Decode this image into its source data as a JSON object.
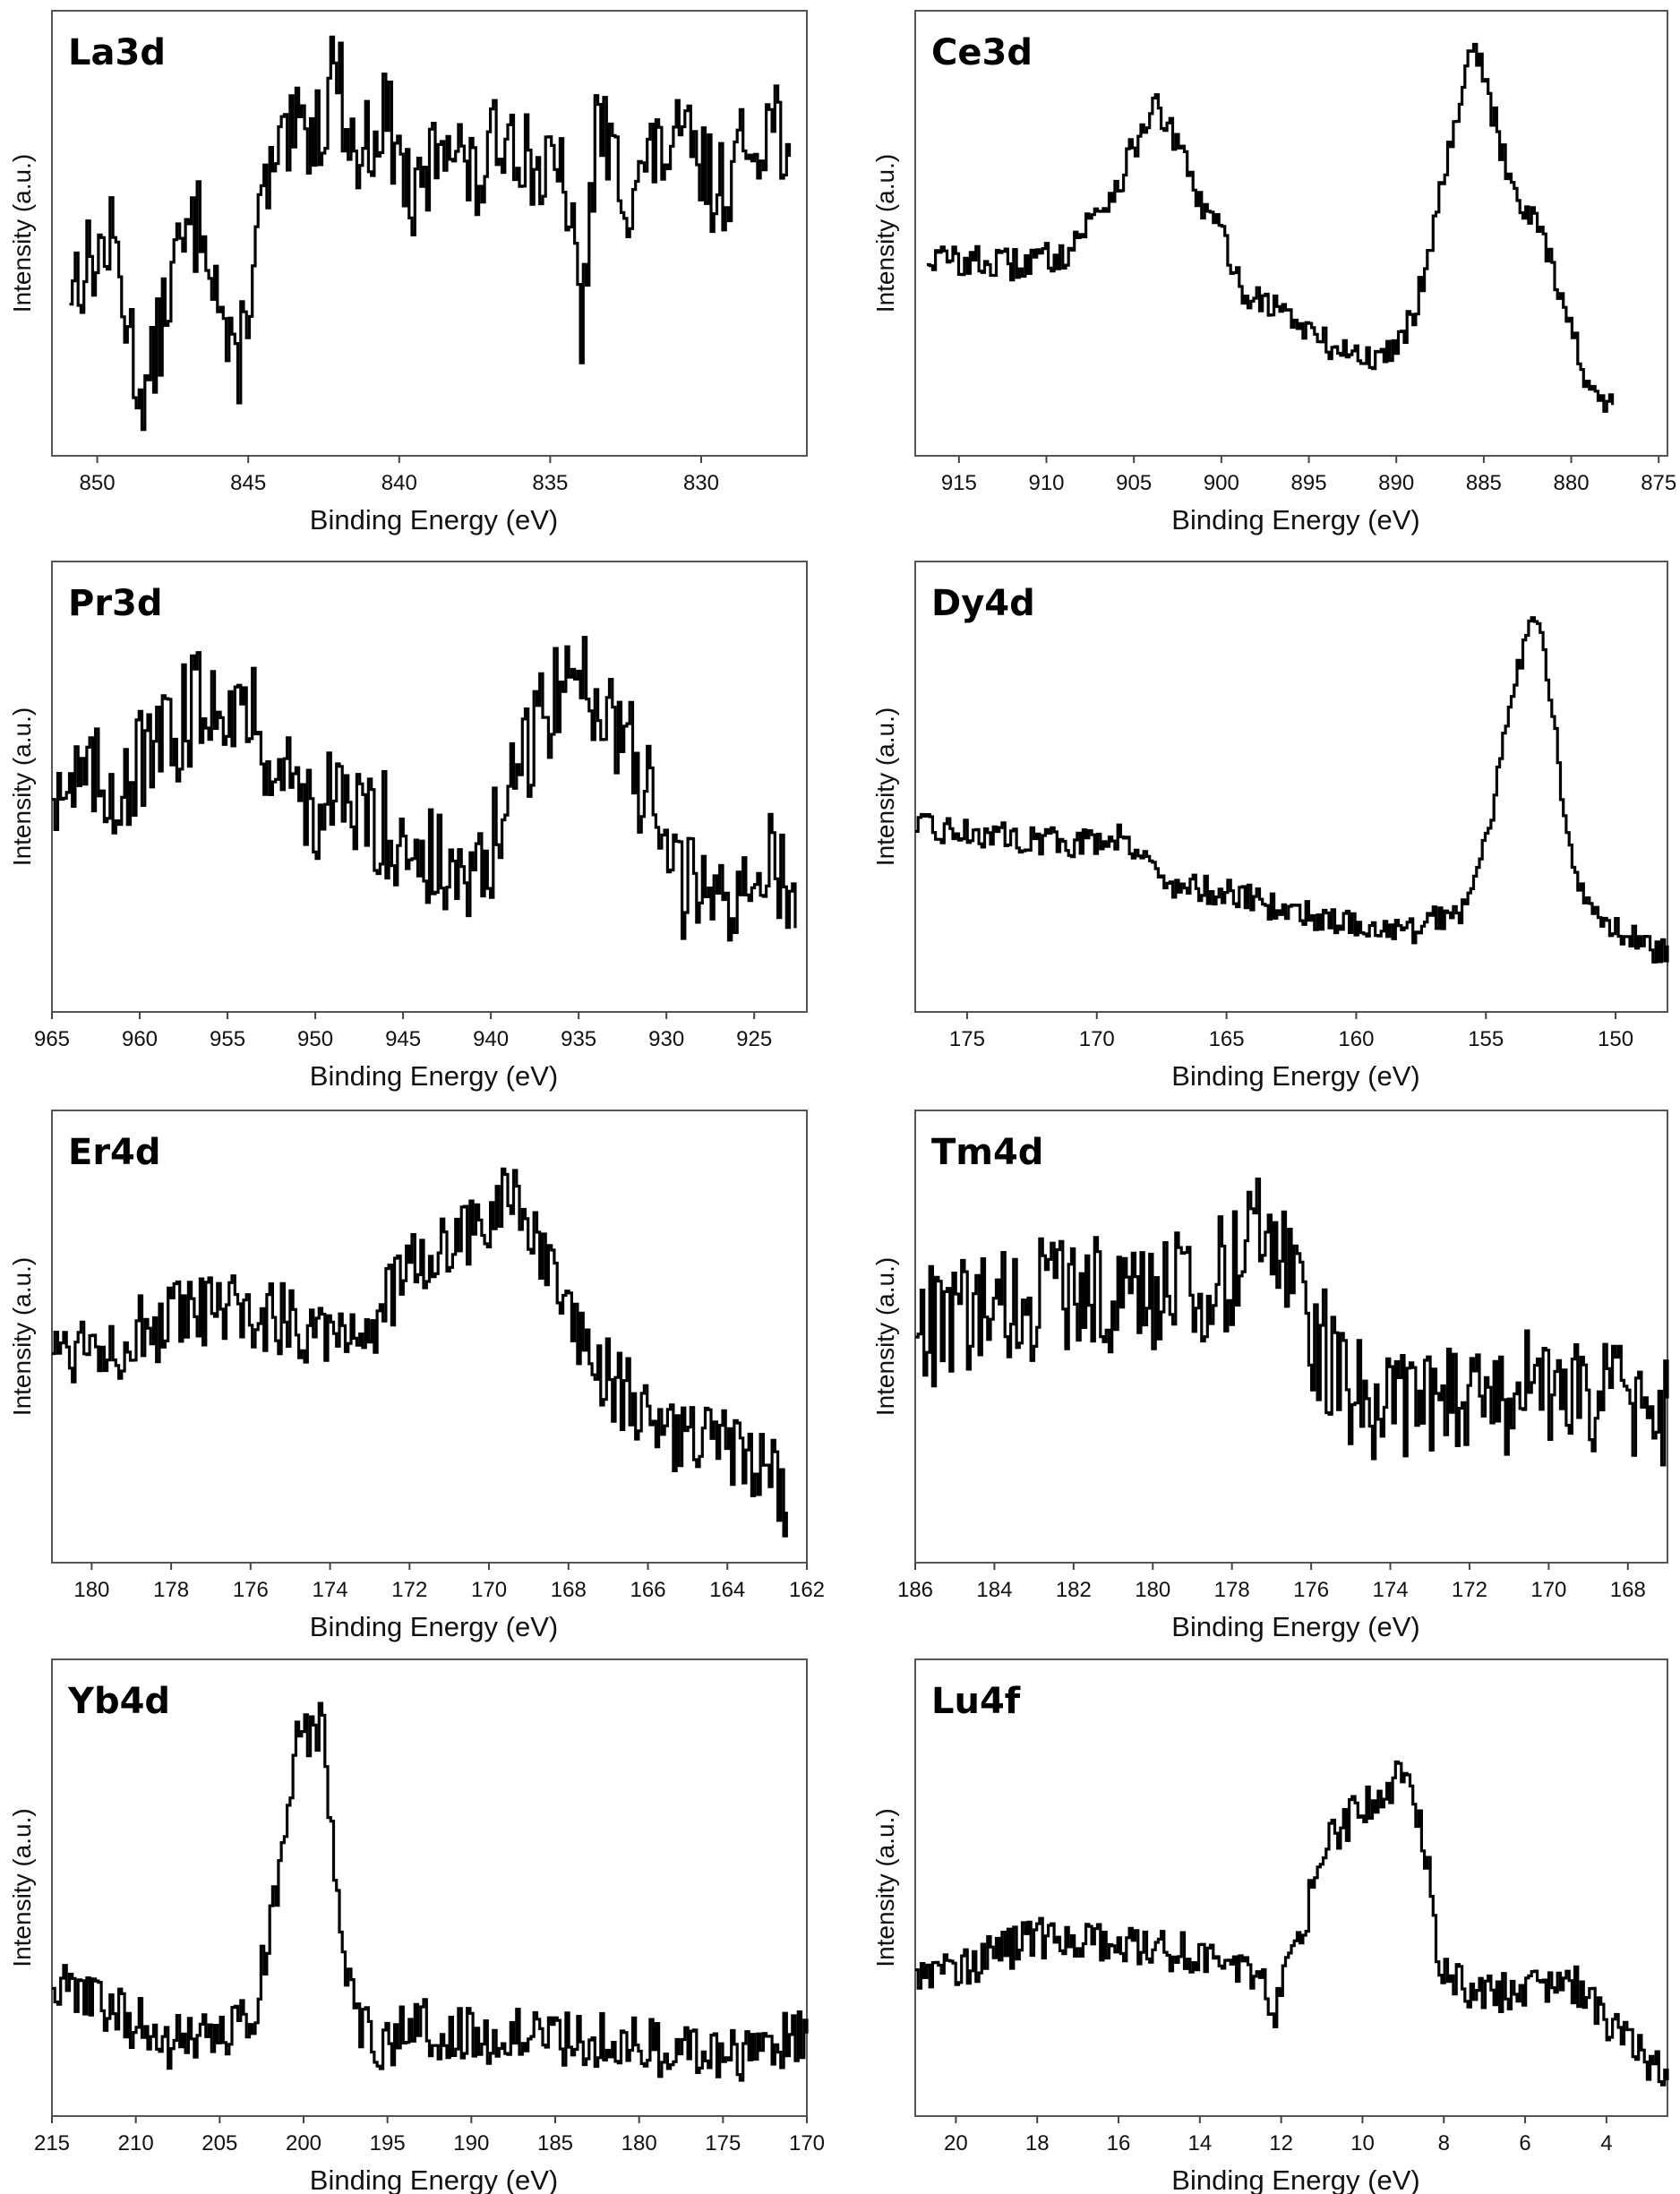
{
  "chart_data": [
    {
      "type": "line",
      "title": "La3d",
      "xlabel": "Binding Energy (eV)",
      "ylabel": "Intensity (a.u.)",
      "xlim": [
        851.5,
        826.5
      ],
      "ylim": [
        0,
        100
      ],
      "xticks": [
        850,
        845,
        840,
        835,
        830
      ],
      "x": [
        851.0,
        849.5,
        848.5,
        847.5,
        846.5,
        845.5,
        844.5,
        843.5,
        842.5,
        842.3,
        841.5,
        840.5,
        839.5,
        838.5,
        837.5,
        836.5,
        835.5,
        834.5,
        834.0,
        833.5,
        832.5,
        831.5,
        830.5,
        829.5,
        828.5,
        827.5,
        827.0
      ],
      "values": [
        38,
        48,
        5,
        42,
        55,
        12,
        60,
        74,
        78,
        98,
        68,
        80,
        55,
        78,
        61,
        78,
        66,
        62,
        25,
        78,
        60,
        70,
        72,
        60,
        72,
        80,
        62
      ],
      "noise": 12
    },
    {
      "type": "line",
      "title": "Ce3d",
      "xlabel": "Binding Energy (eV)",
      "ylabel": "Intensity (a.u.)",
      "xlim": [
        917.5,
        874.5
      ],
      "ylim": [
        0,
        100
      ],
      "xticks": [
        915,
        910,
        905,
        900,
        895,
        890,
        885,
        880,
        875
      ],
      "x": [
        917,
        912,
        909,
        906,
        904,
        903,
        901,
        900,
        899,
        897,
        894,
        891,
        889,
        887,
        886,
        885.5,
        884,
        883,
        882,
        881,
        879,
        877.5
      ],
      "values": [
        44,
        42,
        45,
        62,
        82,
        76,
        55,
        50,
        36,
        32,
        22,
        18,
        30,
        72,
        94,
        96,
        70,
        58,
        54,
        40,
        10,
        5
      ],
      "noise": 4
    },
    {
      "type": "line",
      "title": "Pr3d",
      "xlabel": "Binding Energy (eV)",
      "ylabel": "Intensity (a.u.)",
      "xlim": [
        965,
        922
      ],
      "ylim": [
        0,
        100
      ],
      "xticks": [
        965,
        960,
        955,
        950,
        945,
        940,
        935,
        930,
        925
      ],
      "x": [
        965,
        962,
        959,
        957,
        955,
        953,
        951,
        949,
        947,
        945,
        943,
        941,
        939,
        937,
        935,
        933,
        931,
        929,
        927,
        925,
        922.5
      ],
      "values": [
        52,
        50,
        58,
        70,
        74,
        62,
        48,
        44,
        42,
        38,
        30,
        24,
        46,
        70,
        78,
        68,
        45,
        25,
        22,
        30,
        28
      ],
      "noise": 14
    },
    {
      "type": "line",
      "title": "Dy4d",
      "xlabel": "Binding Energy (eV)",
      "ylabel": "Intensity (a.u.)",
      "xlim": [
        177,
        148
      ],
      "ylim": [
        0,
        100
      ],
      "xticks": [
        175,
        170,
        165,
        160,
        155,
        150
      ],
      "x": [
        177,
        174,
        171,
        169,
        168,
        167.5,
        165,
        163,
        160,
        158,
        156,
        155,
        154,
        153.3,
        153,
        152.5,
        152,
        151.5,
        150,
        148
      ],
      "values": [
        40,
        38,
        36,
        38,
        32,
        26,
        24,
        20,
        16,
        14,
        20,
        38,
        72,
        96,
        88,
        70,
        40,
        25,
        15,
        8
      ],
      "noise": 3.5
    },
    {
      "type": "line",
      "title": "Er4d",
      "xlabel": "Binding Energy (eV)",
      "ylabel": "Intensity (a.u.)",
      "xlim": [
        181,
        162
      ],
      "ylim": [
        0,
        100
      ],
      "xticks": [
        180,
        178,
        176,
        174,
        172,
        170,
        168,
        166,
        164,
        162
      ],
      "x": [
        181,
        179,
        177,
        175,
        173,
        172,
        171,
        170,
        169.5,
        169,
        168.5,
        168,
        167,
        166,
        165,
        164,
        163,
        162.5
      ],
      "values": [
        48,
        50,
        56,
        54,
        52,
        68,
        72,
        80,
        84,
        76,
        64,
        52,
        40,
        30,
        24,
        22,
        18,
        4
      ],
      "noise": 10
    },
    {
      "type": "line",
      "title": "Tm4d",
      "xlabel": "Binding Energy (eV)",
      "ylabel": "Intensity (a.u.)",
      "xlim": [
        186,
        167
      ],
      "ylim": [
        0,
        100
      ],
      "xticks": [
        186,
        184,
        182,
        180,
        178,
        176,
        174,
        172,
        170,
        168
      ],
      "x": [
        186,
        184,
        182,
        180,
        178,
        177.3,
        176.5,
        176,
        175,
        174,
        172,
        170,
        168,
        167
      ],
      "values": [
        52,
        56,
        62,
        60,
        66,
        82,
        68,
        52,
        36,
        32,
        34,
        38,
        34,
        30
      ],
      "noise": 15
    },
    {
      "type": "line",
      "title": "Yb4d",
      "xlabel": "Binding Energy (eV)",
      "ylabel": "Intensity (a.u.)",
      "xlim": [
        215,
        170
      ],
      "ylim": [
        0,
        100
      ],
      "xticks": [
        215,
        210,
        205,
        200,
        195,
        190,
        185,
        180,
        175,
        170
      ],
      "x": [
        215,
        212,
        208,
        205,
        203,
        201.5,
        200.5,
        199.5,
        199,
        198.3,
        197.5,
        196,
        193,
        190,
        186,
        182,
        178,
        175,
        172,
        170
      ],
      "values": [
        26,
        22,
        12,
        14,
        18,
        55,
        84,
        88,
        90,
        60,
        25,
        12,
        16,
        14,
        14,
        13,
        10,
        8,
        12,
        14
      ],
      "noise": 7
    },
    {
      "type": "line",
      "title": "Lu4f",
      "xlabel": "Binding Energy (eV)",
      "ylabel": "Intensity (a.u.)",
      "xlim": [
        21,
        2.5
      ],
      "ylim": [
        0,
        100
      ],
      "xticks": [
        20,
        18,
        16,
        14,
        12,
        10,
        8,
        6,
        4
      ],
      "x": [
        21,
        19.5,
        18,
        16,
        14,
        12.5,
        12.2,
        11.5,
        11,
        10,
        9.5,
        9,
        8.5,
        8.1,
        7.5,
        6,
        5,
        4,
        3,
        2.5
      ],
      "values": [
        30,
        32,
        38,
        36,
        34,
        28,
        20,
        40,
        60,
        70,
        74,
        78,
        60,
        30,
        26,
        24,
        28,
        18,
        8,
        4
      ],
      "noise": 5
    }
  ]
}
